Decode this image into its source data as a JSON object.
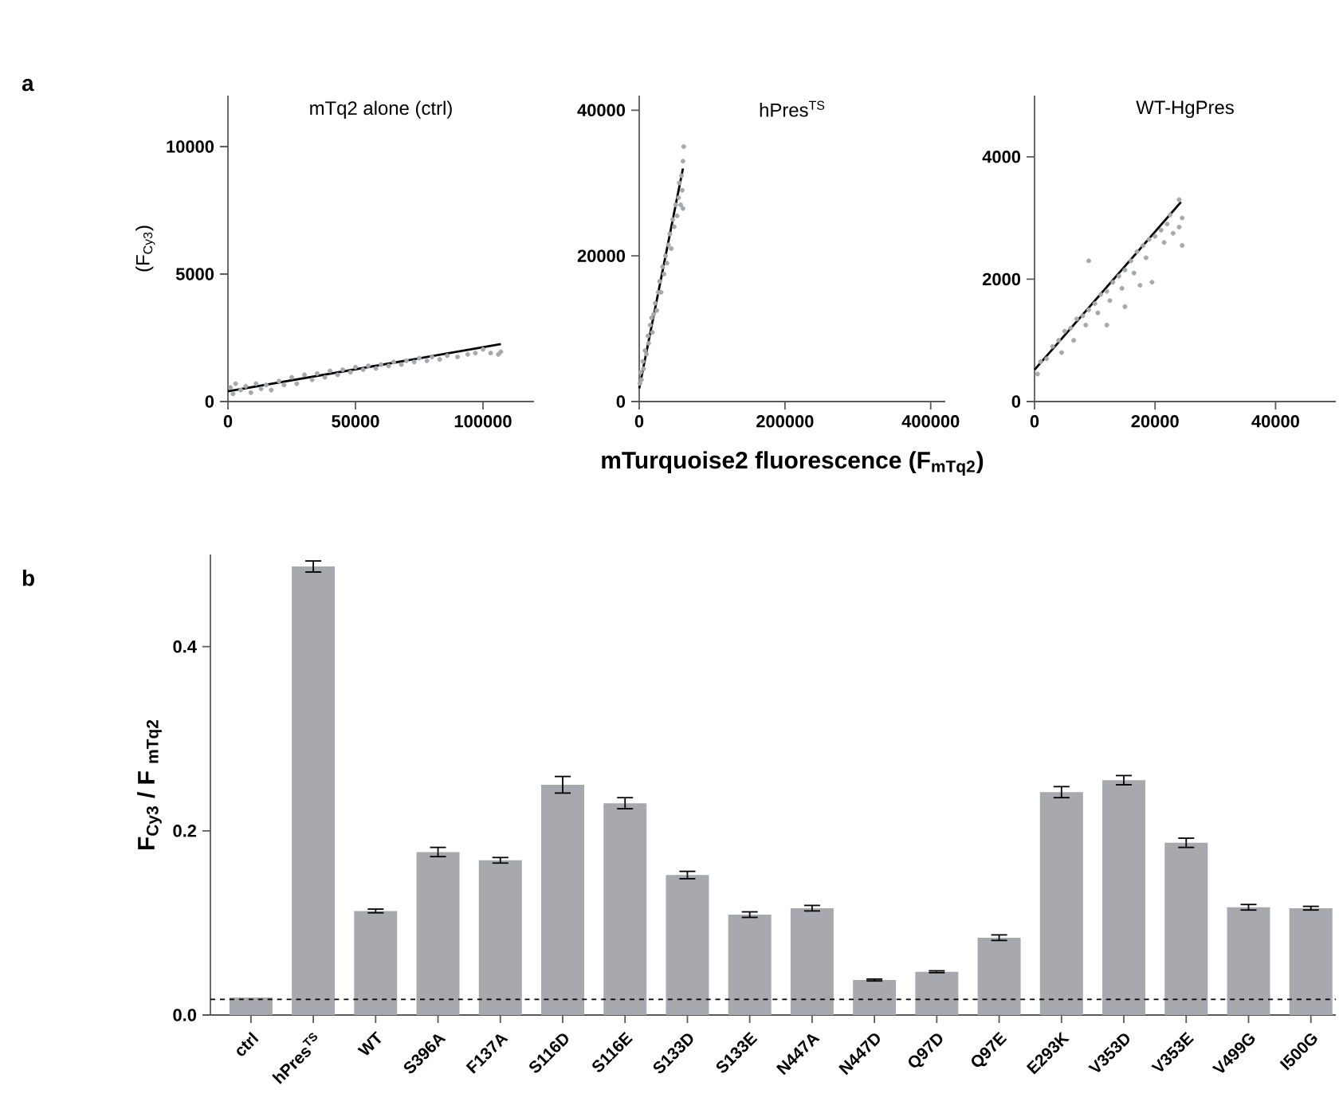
{
  "chart_data": [
    {
      "type": "scatter",
      "title": "mTq2 alone (ctrl)",
      "ylabel": "(F$_{Cy3}$)",
      "annotations": [
        "a"
      ],
      "xlim": [
        0,
        120000
      ],
      "ylim": [
        0,
        12000
      ],
      "xticks": [
        0,
        50000,
        100000
      ],
      "yticks": [
        0,
        5000,
        10000
      ],
      "series": [
        {
          "type": "scatter",
          "marker": "circle",
          "color": "#a6a8ab",
          "x": [
            1000,
            2000,
            3000,
            5000,
            7000,
            9000,
            11000,
            13000,
            15000,
            17000,
            20000,
            22000,
            25000,
            27000,
            30000,
            33000,
            35000,
            38000,
            40000,
            43000,
            45000,
            48000,
            50000,
            53000,
            55000,
            58000,
            60000,
            63000,
            65000,
            68000,
            70000,
            73000,
            75000,
            78000,
            80000,
            83000,
            86000,
            90000,
            94000,
            97000,
            100000,
            103000,
            106000,
            107000
          ],
          "values": [
            550,
            300,
            700,
            450,
            600,
            350,
            700,
            500,
            650,
            450,
            800,
            650,
            950,
            700,
            1050,
            850,
            1100,
            950,
            1200,
            1050,
            1250,
            1150,
            1350,
            1250,
            1400,
            1300,
            1450,
            1400,
            1550,
            1450,
            1600,
            1550,
            1700,
            1600,
            1750,
            1650,
            1800,
            1750,
            1850,
            1900,
            2050,
            1900,
            1850,
            1950
          ]
        },
        {
          "type": "line",
          "marker": "none",
          "color": "#000000",
          "x": [
            0,
            107000
          ],
          "values": [
            400,
            2250
          ]
        }
      ]
    },
    {
      "type": "scatter",
      "title": "hPres$^{TS}$",
      "xlabel": "mTurquoise2 fluorescence (F$_{mTq2}$)",
      "xlim": [
        0,
        420000
      ],
      "ylim": [
        0,
        42000
      ],
      "xticks": [
        0,
        200000,
        400000
      ],
      "yticks": [
        0,
        20000,
        40000
      ],
      "series": [
        {
          "type": "scatter",
          "marker": "circle",
          "color": "#a6a8ab",
          "x": [
            1000,
            2000,
            3000,
            5000,
            6000,
            8000,
            10000,
            12000,
            13000,
            15000,
            17000,
            18000,
            20000,
            22000,
            24000,
            26000,
            28000,
            30000,
            32000,
            34000,
            36000,
            38000,
            40000,
            42000,
            44000,
            46000,
            48000,
            50000,
            52000,
            54000,
            55000,
            57000,
            58000,
            59000,
            60000,
            61000,
            60000
          ],
          "values": [
            2500,
            4000,
            3000,
            5500,
            4500,
            7000,
            6500,
            9000,
            8000,
            10500,
            11500,
            9500,
            12000,
            13500,
            12500,
            15000,
            16500,
            15000,
            18500,
            17500,
            20000,
            19000,
            21500,
            23000,
            21000,
            25000,
            24000,
            27000,
            25500,
            28000,
            30000,
            27000,
            31000,
            29000,
            33000,
            35000,
            26500
          ]
        },
        {
          "type": "line",
          "marker": "none",
          "color": "#000000",
          "x": [
            0,
            60000
          ],
          "values": [
            1800,
            32000
          ]
        }
      ]
    },
    {
      "type": "scatter",
      "title": "WT-HgPres",
      "xlim": [
        0,
        50000
      ],
      "ylim": [
        0,
        5000
      ],
      "xticks": [
        0,
        20000,
        40000
      ],
      "yticks": [
        0,
        2000,
        4000
      ],
      "series": [
        {
          "type": "scatter",
          "marker": "circle",
          "color": "#a6a8ab",
          "x": [
            500,
            1000,
            2000,
            3000,
            4000,
            4500,
            5000,
            6000,
            6500,
            7000,
            8000,
            8500,
            9000,
            9000,
            10000,
            10500,
            11000,
            12000,
            12000,
            12500,
            13000,
            14000,
            14500,
            15000,
            15000,
            16000,
            16500,
            17000,
            17500,
            18000,
            18500,
            19000,
            19500,
            20000,
            21000,
            21500,
            22000,
            22500,
            23000,
            24000,
            24000,
            24500,
            24500
          ],
          "values": [
            450,
            650,
            700,
            900,
            1000,
            800,
            1150,
            1200,
            1000,
            1350,
            1400,
            1250,
            1500,
            2300,
            1600,
            1450,
            1750,
            1800,
            1250,
            1650,
            1950,
            2050,
            1850,
            2150,
            1550,
            2300,
            2100,
            2450,
            1900,
            2550,
            2350,
            2650,
            1950,
            2700,
            2800,
            2600,
            2900,
            3050,
            2750,
            2850,
            3300,
            3000,
            2550
          ]
        },
        {
          "type": "line",
          "marker": "none",
          "color": "#000000",
          "x": [
            0,
            24300
          ],
          "values": [
            520,
            3260
          ]
        }
      ]
    },
    {
      "type": "bar",
      "ylabel": "F$_{Cy3}$ / F $_{mTq2}$",
      "annotations": [
        "b"
      ],
      "color": "#a7a9ae",
      "ylim": [
        0,
        0.5
      ],
      "yticks": [
        {
          "value": 0,
          "label": "0.0"
        },
        0.2,
        0.4
      ],
      "categories": [
        "ctrl",
        "hPres$^{TS}$",
        "WT",
        "S396A",
        "F137A",
        "S116D",
        "S116E",
        "S133D",
        "S133E",
        "N447A",
        "N447D",
        "Q97D",
        "Q97E",
        "E293K",
        "V353D",
        "V353E",
        "V499G",
        "I500G"
      ],
      "values": [
        0.019,
        0.487,
        0.113,
        0.177,
        0.168,
        0.25,
        0.23,
        0.152,
        0.109,
        0.116,
        0.038,
        0.047,
        0.084,
        0.242,
        0.255,
        0.187,
        0.117,
        0.116
      ],
      "errors": [
        null,
        0.006,
        0.002,
        0.005,
        0.003,
        0.009,
        0.006,
        0.004,
        0.003,
        0.003,
        0.001,
        0.001,
        0.003,
        0.006,
        0.005,
        0.005,
        0.003,
        0.002
      ],
      "ref_lines": [
        {
          "axis": "y",
          "value": 0.017,
          "line_style": "dashed",
          "color": "#000000"
        }
      ]
    }
  ]
}
